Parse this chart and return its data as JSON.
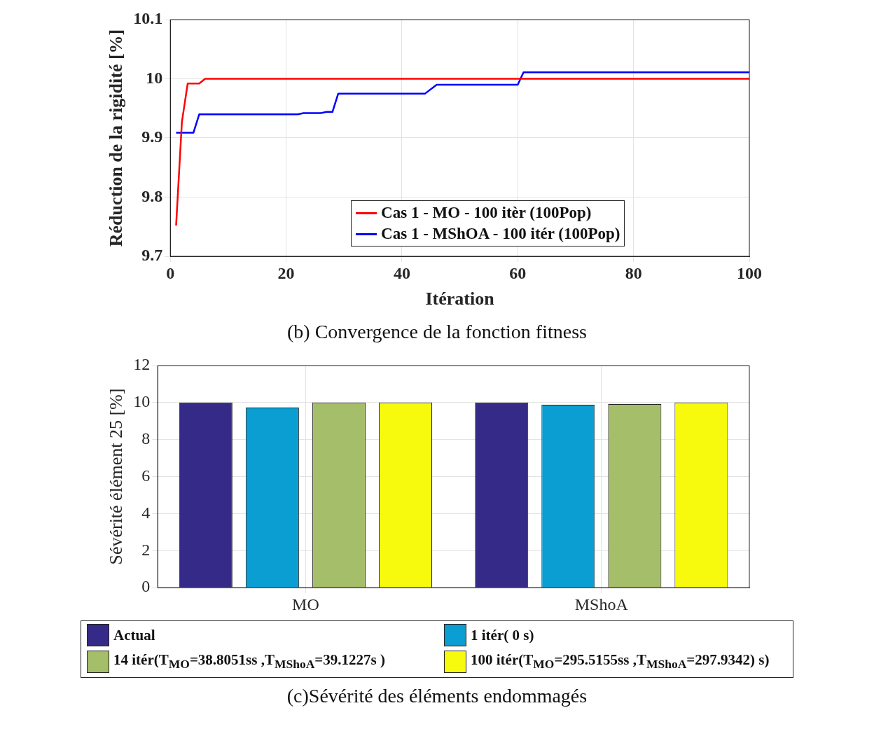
{
  "chart_data": [
    {
      "type": "line",
      "title": "(b) Convergence de la fonction fitness",
      "xlabel": "Itération",
      "ylabel": "Réduction de la rigidité [%]",
      "xlim": [
        0,
        100
      ],
      "xticks": [
        0,
        20,
        40,
        60,
        80,
        100
      ],
      "ylim": [
        9.7,
        10.1
      ],
      "yticks": [
        9.7,
        9.8,
        9.9,
        10,
        10.1
      ],
      "grid": true,
      "legend": "bottom",
      "marker": "none",
      "series": [
        {
          "name": "Cas 1 - MO - 100 itèr (100Pop)",
          "color": "#ff0000",
          "x": [
            1,
            2,
            3,
            5,
            6,
            100
          ],
          "values": [
            9.752,
            9.927,
            9.992,
            9.992,
            10,
            10
          ]
        },
        {
          "name": "Cas 1 - MShOA - 100 itér (100Pop)",
          "color": "#0000ff",
          "x": [
            1,
            4,
            5,
            22,
            23,
            26,
            27,
            28,
            29,
            44,
            46,
            60,
            61,
            100
          ],
          "values": [
            9.909,
            9.909,
            9.94,
            9.94,
            9.942,
            9.942,
            9.944,
            9.944,
            9.975,
            9.975,
            9.99,
            9.99,
            10.011,
            10.011
          ]
        }
      ]
    },
    {
      "type": "bar",
      "title": "(c)Sévérité des éléments endommagés",
      "ylabel": "Sévérité élément 25 [%]",
      "categories": [
        "MO",
        "MShoA"
      ],
      "ylim": [
        0,
        12
      ],
      "yticks": [
        0,
        2,
        4,
        6,
        8,
        10,
        12
      ],
      "grid": true,
      "legend": "bottom",
      "series": [
        {
          "name": "Actual",
          "color": "#352a87",
          "values": [
            10,
            10
          ]
        },
        {
          "name": "1 itér( 0 s)",
          "color": "#0a9ed2",
          "values": [
            9.73,
            9.88
          ]
        },
        {
          "name": "14 itér(T$_{MO}$=38.8051ss ,T$_{MShoA}$=39.1227s )",
          "color": "#a5be6a",
          "values": [
            10,
            9.92
          ]
        },
        {
          "name": "100 itér(T$_{MO}$=295.5155ss ,T$_{MShoA}$=297.9342) s)",
          "color": "#f8fa0d",
          "values": [
            10,
            10
          ]
        }
      ]
    }
  ]
}
